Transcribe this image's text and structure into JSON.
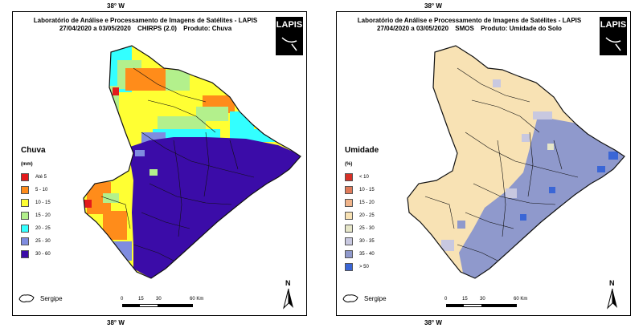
{
  "coordinates": {
    "top": "38° W",
    "bottom": "38° W"
  },
  "panels": [
    {
      "title_line1": "Laboratório de Análise e Processamento de Imagens de Satélites - LAPIS",
      "date_range": "27/04/2020  a  03/05/2020",
      "source": "CHIRPS (2.0)",
      "product": "Produto: Chuva",
      "logo_text": "LAPIS",
      "legend_title": "Chuva",
      "legend_unit": "(mm)",
      "legend_items": [
        {
          "label": "Até 5",
          "color": "#e31a1c"
        },
        {
          "label": "5 - 10",
          "color": "#ff8c1a"
        },
        {
          "label": "10 - 15",
          "color": "#ffff33"
        },
        {
          "label": "15 - 20",
          "color": "#b3f08c"
        },
        {
          "label": "20 - 25",
          "color": "#33ffff"
        },
        {
          "label": "25 - 30",
          "color": "#7f8ce0"
        },
        {
          "label": "30 - 60",
          "color": "#3b0ca8"
        }
      ],
      "locator_label": "Sergipe",
      "scale_labels": [
        "0",
        "15",
        "30",
        "60 Km"
      ],
      "north_label": "N"
    },
    {
      "title_line1": "Laboratório de Análise e Processamento de Imagens de Satélites - LAPIS",
      "date_range": "27/04/2020  a  03/05/2020",
      "source": "SMOS",
      "product": "Produto: Umidade do Solo",
      "logo_text": "LAPIS",
      "legend_title": "Umidade",
      "legend_unit": "(%)",
      "legend_items": [
        {
          "label": "< 10",
          "color": "#d73027"
        },
        {
          "label": "10 - 15",
          "color": "#e07b5a"
        },
        {
          "label": "15 - 20",
          "color": "#f0b48a"
        },
        {
          "label": "20 - 25",
          "color": "#f8e2b4"
        },
        {
          "label": "25 - 30",
          "color": "#e6e6c8"
        },
        {
          "label": "30 - 35",
          "color": "#c8c8e0"
        },
        {
          "label": "35 - 40",
          "color": "#8f99cc"
        },
        {
          "label": "> 50",
          "color": "#3a66d6"
        }
      ],
      "locator_label": "Sergipe",
      "scale_labels": [
        "0",
        "15",
        "30",
        "60 Km"
      ],
      "north_label": "N"
    }
  ]
}
